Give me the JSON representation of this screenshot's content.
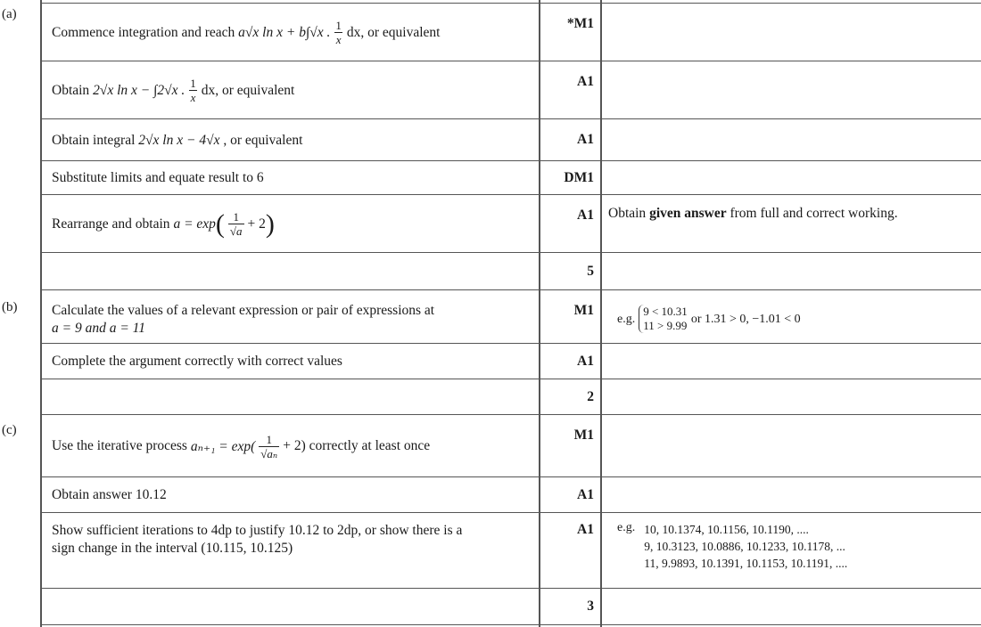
{
  "parts": {
    "a": "(a)",
    "b": "(b)",
    "c": "(c)"
  },
  "rows": {
    "a1": {
      "text": "Commence integration and reach",
      "tail": "dx, or equivalent",
      "mark": "*M1"
    },
    "a2": {
      "text": "Obtain",
      "tail": "dx, or equivalent",
      "mark": "A1"
    },
    "a3": {
      "text": "Obtain integral",
      "tail": ", or equivalent",
      "mark": "A1"
    },
    "a4": {
      "text": "Substitute limits and equate result to 6",
      "mark": "DM1"
    },
    "a5": {
      "text": "Rearrange and obtain",
      "mark": "A1",
      "note_pre": "Obtain ",
      "note_bold": "given answer",
      "note_post": " from full and correct working."
    },
    "a_total": {
      "mark": "5"
    },
    "b1": {
      "text1": "Calculate the values of a relevant expression or pair of expressions at",
      "text2": "a = 9 and a = 11",
      "mark": "M1",
      "note_eg": "e.g.",
      "brace1": "9 < 10.31",
      "brace2": "11 > 9.99",
      "note_or": "or 1.31 > 0, −1.01 < 0"
    },
    "b2": {
      "text": "Complete the argument correctly with correct values",
      "mark": "A1"
    },
    "b_total": {
      "mark": "2"
    },
    "c1": {
      "text": "Use the iterative process",
      "tail": "+ 2) correctly at least once",
      "mark": "M1"
    },
    "c2": {
      "text": "Obtain answer 10.12",
      "mark": "A1"
    },
    "c3": {
      "text1": "Show sufficient iterations to 4dp to justify 10.12 to 2dp, or show there is a",
      "text2": "sign change in the interval (10.115, 10.125)",
      "mark": "A1",
      "note_eg": "e.g.",
      "iter1": "10, 10.1374, 10.1156, 10.1190, ....",
      "iter2": "9, 10.3123, 10.0886, 10.1233, 10.1178, ...",
      "iter3": "11, 9.9893, 10.1391, 10.1153, 10.1191, ...."
    },
    "c_total": {
      "mark": "3"
    }
  },
  "math": {
    "a1_expr": "a√x ln x + b∫√x .",
    "frac_num": "1",
    "frac_den_x": "x",
    "a2_expr": "2√x ln x − ∫2√x .",
    "a3_expr": "2√x ln x − 4√x",
    "a5_expr": "a = exp",
    "a5_den": "√a",
    "a5_plus": "+ 2",
    "c1_expr": "aₙ₊₁ = exp(",
    "c1_den": "√aₙ"
  }
}
